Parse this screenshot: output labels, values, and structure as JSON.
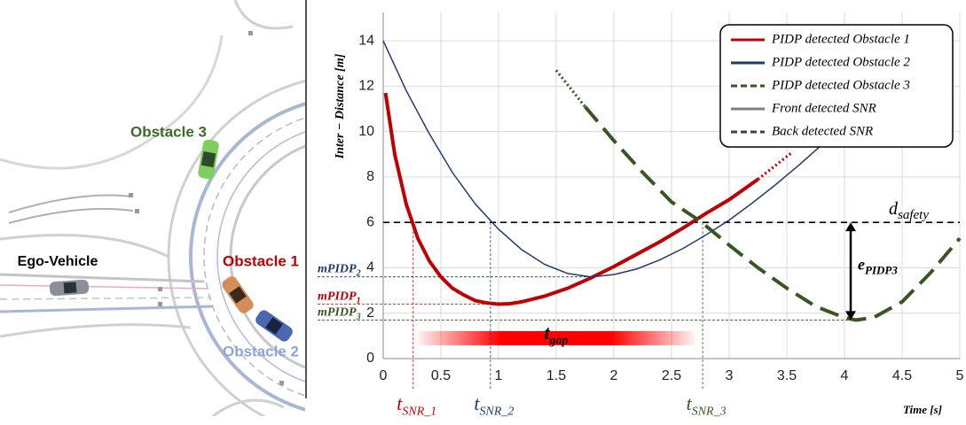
{
  "diagram": {
    "labels": [
      {
        "text": "Obstacle 3",
        "color": "#3a6b28"
      },
      {
        "text": "Ego-Vehicle",
        "color": "#000000"
      },
      {
        "text": "Obstacle 1",
        "color": "#c00000"
      },
      {
        "text": "Obstacle 2",
        "color": "#8ea4d8"
      }
    ]
  },
  "chart_data": {
    "type": "line",
    "y_label": "Inter − Distance [m]",
    "x_label": "Time [s]",
    "xlim": [
      0,
      5
    ],
    "xticks": [
      0,
      0.5,
      1,
      1.5,
      2,
      2.5,
      3,
      3.5,
      4,
      4.5,
      5
    ],
    "ylim": [
      0,
      15.25
    ],
    "yticks": [
      0,
      2,
      4,
      6,
      8,
      10,
      12,
      14
    ],
    "grid": true,
    "legend_position": "upper right",
    "series": [
      {
        "name": "PIDP detected Obstacle 1",
        "color": "#c00000",
        "width": 4,
        "dash": "solid",
        "x": [
          0.02,
          0.1,
          0.2,
          0.3,
          0.4,
          0.5,
          0.6,
          0.7,
          0.8,
          0.9,
          1.0,
          1.1,
          1.2,
          1.4,
          1.6,
          1.8,
          2.0,
          2.2,
          2.4,
          2.6,
          2.8,
          3.0,
          3.25
        ],
        "values": [
          11.7,
          9.0,
          6.8,
          5.3,
          4.3,
          3.6,
          3.1,
          2.8,
          2.55,
          2.45,
          2.4,
          2.42,
          2.5,
          2.75,
          3.1,
          3.55,
          4.05,
          4.6,
          5.15,
          5.75,
          6.4,
          7.0,
          7.9
        ],
        "projection": {
          "x": [
            3.25,
            3.4,
            3.55
          ],
          "values": [
            7.9,
            8.5,
            9.1
          ]
        }
      },
      {
        "name": "PIDP detected Obstacle 2",
        "color": "#1f3a6e",
        "width": 1.5,
        "dash": "solid",
        "x": [
          0,
          0.2,
          0.4,
          0.6,
          0.8,
          1.0,
          1.2,
          1.4,
          1.6,
          1.8,
          2.0,
          2.2,
          2.4,
          2.6,
          2.8,
          3.0,
          3.2,
          3.4,
          3.6,
          3.8,
          3.9
        ],
        "values": [
          14,
          11.8,
          9.9,
          8.2,
          6.8,
          5.7,
          4.8,
          4.15,
          3.75,
          3.6,
          3.7,
          3.95,
          4.35,
          4.85,
          5.45,
          6.1,
          6.85,
          7.65,
          8.5,
          9.4,
          9.9
        ]
      },
      {
        "name": "PIDP detected Obstacle 3",
        "color": "#375623",
        "width": 4,
        "dash": "dashed",
        "x": [
          1.75,
          2.0,
          2.25,
          2.5,
          2.75,
          3.0,
          3.25,
          3.5,
          3.75,
          4.0,
          4.1,
          4.25,
          4.5,
          4.75,
          5.0
        ],
        "values": [
          11.1,
          9.6,
          8.2,
          6.9,
          6.05,
          5.0,
          4.0,
          3.1,
          2.3,
          1.8,
          1.7,
          1.8,
          2.5,
          3.8,
          5.3
        ],
        "projection": {
          "x": [
            1.5,
            1.75
          ],
          "values": [
            12.7,
            11.1
          ]
        }
      }
    ],
    "legend_extra": [
      {
        "name": "Front detected SNR",
        "color": "#808080",
        "dash": "solid"
      },
      {
        "name": "Back detected SNR",
        "color": "#404040",
        "dash": "dashed"
      }
    ],
    "horizontal_refs": [
      {
        "label": "d",
        "sub": "safety",
        "value": 6,
        "x_end": 5,
        "color": "#000000"
      },
      {
        "label": "mPIDP",
        "sub": "2",
        "value": 3.6,
        "x_end": 1.8,
        "color": "#1f3a6e"
      },
      {
        "label": "mPIDP",
        "sub": "1",
        "value": 2.4,
        "x_end": 1.0,
        "color": "#c00000"
      },
      {
        "label": "mPIDP",
        "sub": "3",
        "value": 1.7,
        "x_end": 4.1,
        "color": "#375623"
      }
    ],
    "vertical_refs": [
      {
        "label": "t",
        "sub": "SNR_1",
        "value": 0.26,
        "y_end": 6,
        "color": "#c00000"
      },
      {
        "label": "t",
        "sub": "SNR_2",
        "value": 0.93,
        "y_end": 6,
        "color": "#1f3a6e"
      },
      {
        "label": "t",
        "sub": "SNR_3",
        "value": 2.77,
        "y_end": 6,
        "color": "#375623"
      }
    ],
    "gap": {
      "label": "t",
      "sub": "gap",
      "x_range": [
        0.3,
        2.7
      ],
      "y": 0.9
    },
    "error_arrow": {
      "label": "e",
      "sub": "PIDP3",
      "x": 4.1,
      "y_range": [
        1.7,
        6
      ]
    }
  }
}
